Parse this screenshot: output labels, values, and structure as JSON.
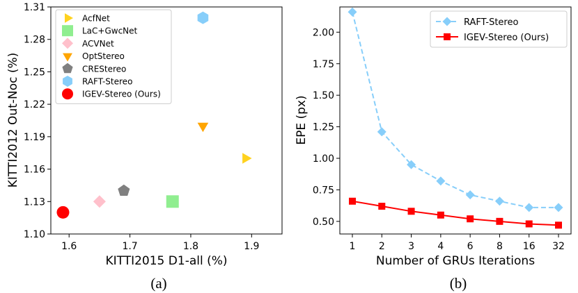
{
  "chart_data": [
    {
      "type": "scatter",
      "panel_label": "(a)",
      "xlabel": "KITTI2015 D1-all (%)",
      "ylabel": "KITTI2012 Out-Noc (%)",
      "xlim": [
        1.57,
        1.95
      ],
      "ylim": [
        1.1,
        1.31
      ],
      "xticks": [
        "1.6",
        "1.7",
        "1.8",
        "1.9"
      ],
      "yticks": [
        "1.10",
        "1.13",
        "1.16",
        "1.19",
        "1.22",
        "1.25",
        "1.28",
        "1.31"
      ],
      "legend_position": "top-left",
      "grid": false,
      "points": [
        {
          "name": "AcfNet",
          "x": 1.89,
          "y": 1.17,
          "marker": "triangle-right",
          "color": "#FFD21F"
        },
        {
          "name": "LaC+GwcNet",
          "x": 1.77,
          "y": 1.13,
          "marker": "square",
          "color": "#90EE90"
        },
        {
          "name": "ACVNet",
          "x": 1.65,
          "y": 1.13,
          "marker": "diamond",
          "color": "#FFC0CB"
        },
        {
          "name": "OptStereo",
          "x": 1.82,
          "y": 1.2,
          "marker": "triangle-down",
          "color": "#FFA500"
        },
        {
          "name": "CREStereo",
          "x": 1.69,
          "y": 1.14,
          "marker": "pentagon",
          "color": "#808080"
        },
        {
          "name": "RAFT-Stereo",
          "x": 1.82,
          "y": 1.3,
          "marker": "hexagon",
          "color": "#87CEFA"
        },
        {
          "name": "IGEV-Stereo (Ours)",
          "x": 1.59,
          "y": 1.12,
          "marker": "circle",
          "color": "#FF0000"
        }
      ]
    },
    {
      "type": "line",
      "panel_label": "(b)",
      "xlabel": "Number of GRUs Iterations",
      "ylabel": "EPE (px)",
      "categories": [
        "1",
        "2",
        "3",
        "4",
        "6",
        "8",
        "16",
        "32"
      ],
      "ylim": [
        0.4,
        2.2
      ],
      "yticks": [
        "0.50",
        "0.75",
        "1.00",
        "1.25",
        "1.50",
        "1.75",
        "2.00"
      ],
      "legend_position": "top-right",
      "grid": false,
      "series": [
        {
          "name": "RAFT-Stereo",
          "values": [
            2.16,
            1.21,
            0.95,
            0.82,
            0.71,
            0.66,
            0.61,
            0.61
          ],
          "color": "#87CEFA",
          "linestyle": "dashed",
          "marker": "diamond"
        },
        {
          "name": "IGEV-Stereo (Ours)",
          "values": [
            0.66,
            0.62,
            0.58,
            0.55,
            0.52,
            0.5,
            0.48,
            0.47
          ],
          "color": "#FF0000",
          "linestyle": "solid",
          "marker": "square"
        }
      ]
    }
  ]
}
